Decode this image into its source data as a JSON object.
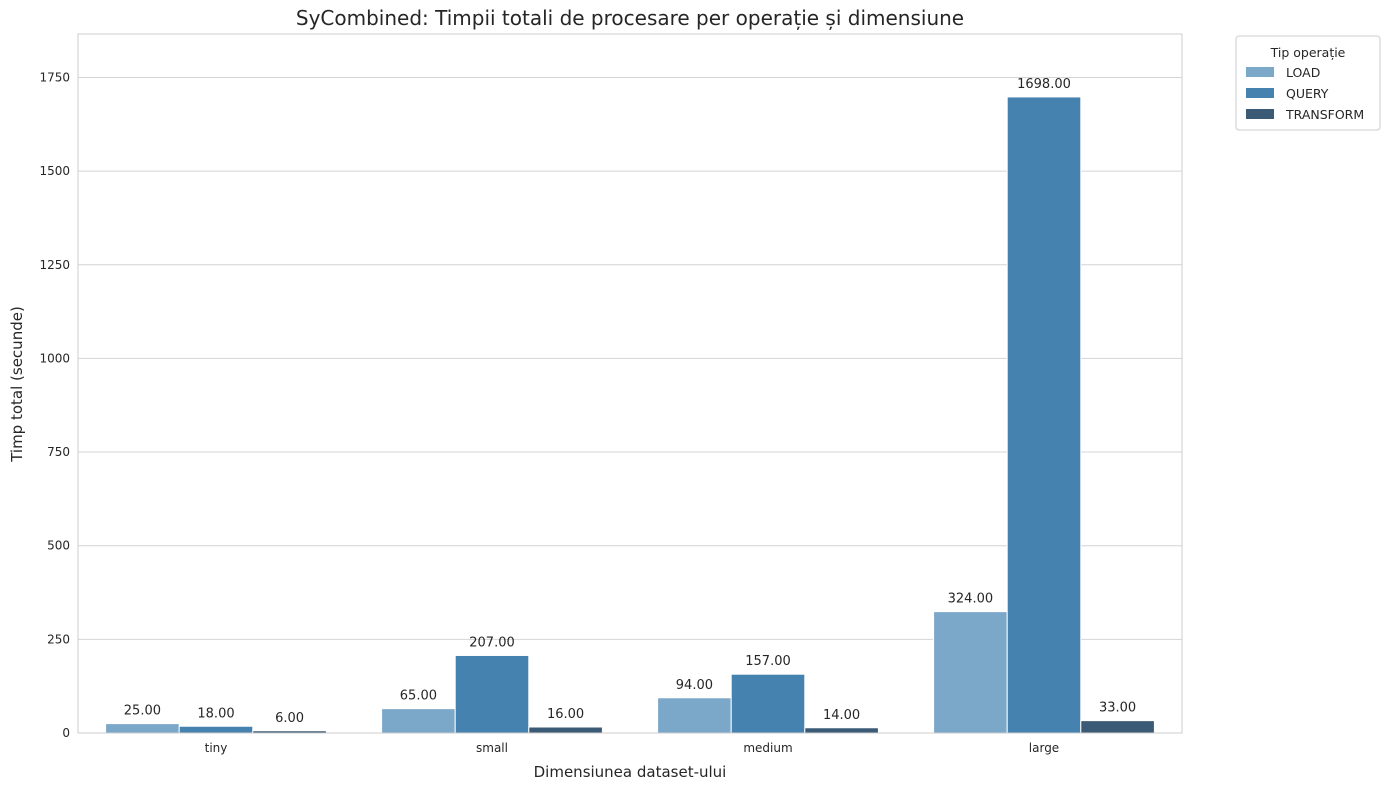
{
  "chart_data": {
    "type": "bar",
    "title": "SyCombined: Timpii totali de procesare per operație și dimensiune",
    "xlabel": "Dimensiunea dataset-ului",
    "ylabel": "Timp total (secunde)",
    "categories": [
      "tiny",
      "small",
      "medium",
      "large"
    ],
    "series": [
      {
        "name": "LOAD",
        "values": [
          25.0,
          65.0,
          94.0,
          324.0
        ],
        "color": "#7ba7c8",
        "labels": [
          "25.00",
          "65.00",
          "94.00",
          "324.00"
        ]
      },
      {
        "name": "QUERY",
        "values": [
          18.0,
          207.0,
          157.0,
          1698.0
        ],
        "color": "#4682b0",
        "labels": [
          "18.00",
          "207.00",
          "157.00",
          "1698.00"
        ]
      },
      {
        "name": "TRANSFORM",
        "values": [
          6.0,
          16.0,
          14.0,
          33.0
        ],
        "color": "#3a5a76",
        "labels": [
          "6.00",
          "16.00",
          "14.00",
          "33.00"
        ]
      }
    ],
    "ylim": [
      0,
      1866
    ],
    "yticks": [
      0,
      250,
      500,
      750,
      1000,
      1250,
      1500,
      1750
    ],
    "grid": "horizontal",
    "legend": {
      "title": "Tip operație",
      "placement": "outside top-right"
    },
    "colors": {
      "grid": "#d4d4d4",
      "frame": "#cccccc",
      "text": "#262626"
    }
  }
}
